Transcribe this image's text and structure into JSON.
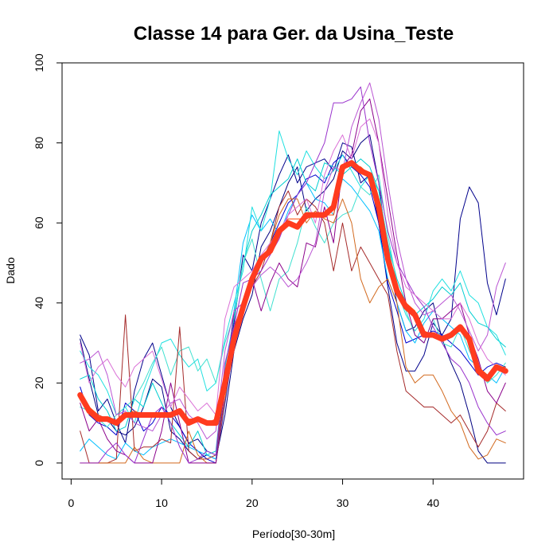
{
  "chart_data": {
    "type": "line",
    "title": "Classe  14 para Ger. da Usina_Teste",
    "xlabel": "Período[30-30m]",
    "ylabel": "Dado",
    "xlim": [
      -1,
      50
    ],
    "ylim": [
      -4,
      100
    ],
    "xticks": [
      0,
      10,
      20,
      30,
      40
    ],
    "yticks": [
      0,
      20,
      40,
      60,
      80,
      100
    ],
    "grid": false,
    "legend": "none",
    "x": [
      1,
      2,
      3,
      4,
      5,
      6,
      7,
      8,
      9,
      10,
      11,
      12,
      13,
      14,
      15,
      16,
      17,
      18,
      19,
      20,
      21,
      22,
      23,
      24,
      25,
      26,
      27,
      28,
      29,
      30,
      31,
      32,
      33,
      34,
      35,
      36,
      37,
      38,
      39,
      40,
      41,
      42,
      43,
      44,
      45,
      46,
      47,
      48
    ],
    "series": [
      {
        "color": "#00008b",
        "values": [
          32,
          27,
          13,
          16,
          10,
          5,
          18,
          26,
          30,
          22,
          14,
          9,
          5,
          6,
          3,
          2,
          20,
          35,
          52,
          48,
          60,
          66,
          72,
          77,
          70,
          74,
          75,
          76,
          73,
          80,
          79,
          70,
          72,
          60,
          44,
          30,
          23,
          23,
          27,
          35,
          32,
          36,
          61,
          69,
          65,
          45,
          37,
          46
        ]
      },
      {
        "color": "#000080",
        "values": [
          31,
          21,
          12,
          11,
          8,
          7,
          9,
          14,
          21,
          19,
          8,
          6,
          3,
          1,
          2,
          1,
          12,
          28,
          36,
          42,
          54,
          58,
          64,
          70,
          74,
          63,
          66,
          68,
          71,
          78,
          76,
          80,
          82,
          70,
          52,
          40,
          33,
          34,
          38,
          40,
          31,
          25,
          20,
          12,
          3,
          0,
          0,
          0
        ]
      },
      {
        "color": "#0000cd",
        "values": [
          19,
          12,
          10,
          9,
          7,
          15,
          13,
          8,
          10,
          14,
          12,
          9,
          5,
          3,
          1,
          0,
          15,
          30,
          38,
          46,
          50,
          55,
          60,
          65,
          67,
          71,
          72,
          70,
          75,
          77,
          74,
          72,
          69,
          60,
          45,
          38,
          30,
          31,
          32,
          33,
          32,
          30,
          28,
          25,
          22,
          24,
          25,
          24
        ]
      },
      {
        "color": "#00ced1",
        "values": [
          21,
          22,
          16,
          13,
          8,
          9,
          16,
          14,
          20,
          15,
          10,
          7,
          4,
          8,
          2,
          3,
          24,
          36,
          50,
          58,
          62,
          67,
          69,
          71,
          76,
          70,
          68,
          75,
          74,
          72,
          74,
          76,
          74,
          68,
          55,
          46,
          40,
          37,
          39,
          41,
          44,
          42,
          45,
          38,
          35,
          34,
          31,
          29
        ]
      },
      {
        "color": "#00bfff",
        "values": [
          3,
          6,
          4,
          2,
          1,
          5,
          3,
          2,
          4,
          5,
          6,
          5,
          4,
          3,
          2,
          1,
          20,
          38,
          55,
          62,
          58,
          61,
          57,
          63,
          67,
          70,
          66,
          65,
          62,
          71,
          69,
          66,
          63,
          58,
          46,
          40,
          33,
          30,
          35,
          38,
          36,
          34,
          32,
          26,
          24,
          22,
          20,
          24
        ]
      },
      {
        "color": "#20e0e0",
        "values": [
          28,
          24,
          22,
          18,
          12,
          14,
          10,
          18,
          24,
          30,
          31,
          27,
          24,
          26,
          18,
          20,
          31,
          40,
          48,
          64,
          58,
          66,
          83,
          76,
          72,
          78,
          74,
          71,
          73,
          77,
          73,
          69,
          72,
          68,
          55,
          43,
          37,
          33,
          36,
          43,
          46,
          43,
          48,
          42,
          40,
          34,
          32,
          27
        ]
      },
      {
        "color": "#40e0d0",
        "values": [
          14,
          13,
          11,
          9,
          12,
          14,
          16,
          20,
          25,
          29,
          22,
          28,
          29,
          23,
          26,
          20,
          30,
          37,
          50,
          56,
          46,
          38,
          46,
          48,
          55,
          64,
          59,
          55,
          60,
          62,
          63,
          69,
          67,
          72,
          57,
          45,
          38,
          32,
          30,
          36,
          30,
          29,
          34,
          28,
          24,
          20,
          22,
          25
        ]
      },
      {
        "color": "#a52a2a",
        "values": [
          8,
          0,
          0,
          0,
          1,
          37,
          3,
          4,
          4,
          6,
          5,
          34,
          3,
          1,
          1,
          2,
          20,
          34,
          40,
          44,
          48,
          55,
          64,
          68,
          62,
          66,
          64,
          60,
          48,
          60,
          48,
          54,
          50,
          46,
          42,
          28,
          18,
          16,
          14,
          14,
          12,
          10,
          12,
          8,
          4,
          8,
          15,
          13
        ]
      },
      {
        "color": "#d2691e",
        "values": [
          0,
          0,
          0,
          0,
          0,
          0,
          4,
          1,
          0,
          0,
          0,
          0,
          8,
          2,
          0,
          0,
          16,
          30,
          38,
          45,
          50,
          55,
          62,
          66,
          66,
          60,
          63,
          61,
          60,
          66,
          60,
          46,
          40,
          44,
          46,
          40,
          24,
          20,
          22,
          22,
          18,
          13,
          10,
          4,
          1,
          2,
          6,
          5
        ]
      },
      {
        "color": "#8b008b",
        "values": [
          15,
          8,
          11,
          6,
          3,
          2,
          0,
          0,
          0,
          8,
          20,
          10,
          0,
          0,
          0,
          0,
          18,
          38,
          40,
          46,
          38,
          45,
          50,
          46,
          44,
          55,
          54,
          64,
          55,
          74,
          77,
          88,
          91,
          80,
          66,
          52,
          40,
          32,
          30,
          36,
          36,
          38,
          40,
          32,
          26,
          18,
          15,
          20
        ]
      },
      {
        "color": "#9932cc",
        "values": [
          0,
          0,
          0,
          3,
          5,
          2,
          0,
          6,
          12,
          14,
          10,
          4,
          0,
          1,
          3,
          2,
          25,
          34,
          45,
          46,
          48,
          52,
          56,
          62,
          67,
          70,
          75,
          80,
          90,
          90,
          91,
          94,
          80,
          70,
          58,
          50,
          46,
          42,
          39,
          34,
          30,
          26,
          24,
          20,
          14,
          10,
          7,
          8
        ]
      },
      {
        "color": "#ba55d3",
        "values": [
          25,
          26,
          28,
          22,
          12,
          13,
          10,
          9,
          8,
          12,
          15,
          16,
          12,
          10,
          6,
          8,
          28,
          38,
          40,
          44,
          47,
          49,
          47,
          44,
          46,
          50,
          55,
          68,
          74,
          73,
          84,
          90,
          95,
          86,
          70,
          56,
          46,
          40,
          37,
          38,
          40,
          42,
          38,
          33,
          28,
          32,
          44,
          50
        ]
      },
      {
        "color": "#da70d6",
        "values": [
          30,
          20,
          24,
          26,
          22,
          19,
          24,
          26,
          28,
          21,
          14,
          19,
          16,
          13,
          15,
          12,
          36,
          44,
          46,
          48,
          52,
          55,
          58,
          62,
          64,
          66,
          60,
          72,
          78,
          82,
          76,
          84,
          86,
          80,
          62,
          50,
          44,
          42,
          40,
          38,
          36,
          36,
          40,
          36,
          30,
          26,
          24,
          22
        ]
      },
      {
        "color": "#ff4500",
        "values": [
          16,
          14,
          12,
          11,
          10,
          12,
          13,
          12,
          12,
          12,
          12,
          13,
          11,
          11,
          10,
          11,
          20,
          30,
          38,
          45,
          50,
          54,
          58,
          61,
          61,
          61,
          62,
          62,
          62,
          73,
          75,
          74,
          72,
          65,
          52,
          44,
          40,
          38,
          33,
          32,
          31,
          32,
          33,
          32,
          24,
          22,
          24,
          24
        ]
      },
      {
        "color": "#ff3b1f",
        "emphasis": true,
        "values": [
          17,
          13,
          11,
          11,
          10,
          12,
          12,
          12,
          12,
          12,
          12,
          13,
          10,
          11,
          10,
          10,
          20,
          31,
          39,
          46,
          51,
          53,
          58,
          60,
          59,
          62,
          62,
          62,
          64,
          74,
          75,
          73,
          72,
          64,
          51,
          43,
          39,
          37,
          32,
          32,
          31,
          32,
          34,
          31,
          23,
          21,
          24,
          23
        ]
      }
    ]
  }
}
